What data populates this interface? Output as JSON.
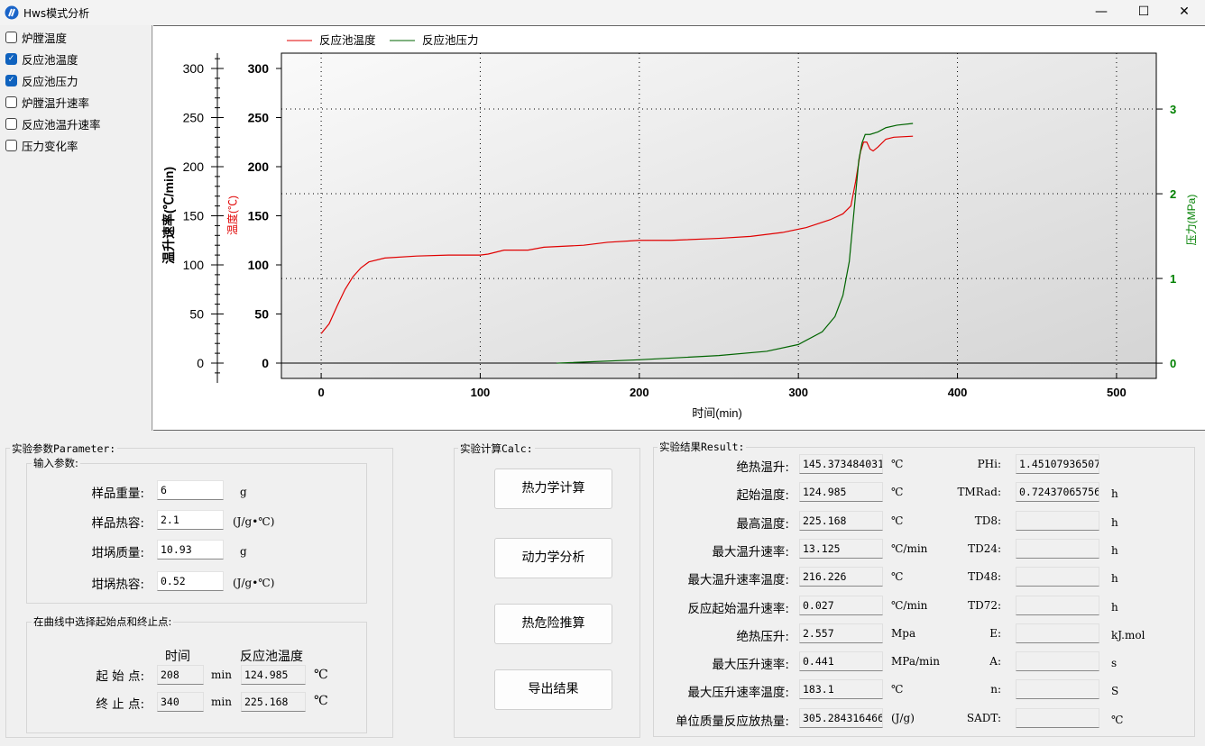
{
  "window": {
    "title": "Hws模式分析",
    "minimize": "—",
    "maximize": "☐",
    "close": "✕",
    "icon": "app-logo-icon"
  },
  "sidebar": {
    "items": [
      {
        "label": "炉膛温度",
        "checked": false
      },
      {
        "label": "反应池温度",
        "checked": true
      },
      {
        "label": "反应池压力",
        "checked": true
      },
      {
        "label": "炉膛温升速率",
        "checked": false
      },
      {
        "label": "反应池温升速率",
        "checked": false
      },
      {
        "label": "压力变化率",
        "checked": false
      }
    ]
  },
  "chart_data": {
    "type": "line",
    "xlabel": "时间(min)",
    "ylabel_outer": "温升速率(℃/min)",
    "ylabel_left": "温度(℃)",
    "ylabel_right": "压力(MPa)",
    "xlim": [
      -25,
      525
    ],
    "ylim": [
      -15.6,
      315.6
    ],
    "y2lim": [
      -0.18,
      3.66
    ],
    "x_ticks": [
      "0",
      "100",
      "200",
      "300",
      "400",
      "500"
    ],
    "y_ticks": [
      "0",
      "50",
      "100",
      "150",
      "200",
      "250",
      "300"
    ],
    "y2_ticks": [
      "0",
      "1",
      "2",
      "3"
    ],
    "grid": "dotted",
    "legend": "top-left",
    "series": [
      {
        "name": "反应池温度",
        "color": "#e00000",
        "axis": "left",
        "x": [
          0,
          5,
          10,
          15,
          20,
          25,
          30,
          40,
          60,
          80,
          100,
          105,
          115,
          130,
          140,
          165,
          180,
          200,
          220,
          250,
          270,
          290,
          305,
          320,
          328,
          333,
          336,
          339,
          341,
          343,
          345,
          347,
          350,
          355,
          360,
          372
        ],
        "y": [
          30,
          40,
          58,
          75,
          88,
          97,
          103,
          107,
          109,
          110,
          110,
          111,
          115,
          115,
          118,
          120,
          123,
          125,
          125,
          127,
          129,
          133,
          138,
          146,
          152,
          160,
          185,
          215,
          225,
          225,
          218,
          216,
          220,
          228,
          230,
          231
        ]
      },
      {
        "name": "反应池压力",
        "color": "#006400",
        "axis": "right",
        "x": [
          148,
          200,
          250,
          280,
          300,
          315,
          323,
          328,
          332,
          334,
          336,
          338,
          340,
          342,
          345,
          350,
          355,
          362,
          372
        ],
        "y": [
          0,
          0.04,
          0.09,
          0.14,
          0.22,
          0.37,
          0.55,
          0.8,
          1.2,
          1.6,
          2.0,
          2.4,
          2.6,
          2.7,
          2.7,
          2.73,
          2.78,
          2.81,
          2.83
        ]
      }
    ]
  },
  "params": {
    "title": "实验参数Parameter:",
    "input_title": "输入参数:",
    "inputs": [
      {
        "label": "样品重量:",
        "value": "6",
        "unit": "g"
      },
      {
        "label": "样品热容:",
        "value": "2.1",
        "unit": "(J/g•℃)"
      },
      {
        "label": "坩埚质量:",
        "value": "10.93",
        "unit": "g"
      },
      {
        "label": "坩埚热容:",
        "value": "0.52",
        "unit": "(J/g•℃)"
      }
    ],
    "select_title": "在曲线中选择起始点和终止点:",
    "col_time": "时间",
    "col_temp": "反应池温度",
    "start": {
      "label": "起 始 点:",
      "time": "208",
      "time_unit": "min",
      "temp": "124.985",
      "temp_unit": "℃"
    },
    "end": {
      "label": "终 止 点:",
      "time": "340",
      "time_unit": "min",
      "temp": "225.168",
      "temp_unit": "℃"
    }
  },
  "calc": {
    "title": "实验计算Calc:",
    "buttons": [
      "热力学计算",
      "动力学分析",
      "热危险推算",
      "导出结果"
    ]
  },
  "results": {
    "title": "实验结果Result:",
    "left": [
      {
        "label": "绝热温升:",
        "value": "145.373484031",
        "unit": "℃"
      },
      {
        "label": "起始温度:",
        "value": "124.985",
        "unit": "℃"
      },
      {
        "label": "最高温度:",
        "value": "225.168",
        "unit": "℃"
      },
      {
        "label": "最大温升速率:",
        "value": "13.125",
        "unit": "℃/min"
      },
      {
        "label": "最大温升速率温度:",
        "value": "216.226",
        "unit": "℃"
      },
      {
        "label": "反应起始温升速率:",
        "value": "0.027",
        "unit": "℃/min"
      },
      {
        "label": "绝热压升:",
        "value": "2.557",
        "unit": "Mpa"
      },
      {
        "label": "最大压升速率:",
        "value": "0.441",
        "unit": "MPa/min"
      },
      {
        "label": "最大压升速率温度:",
        "value": "183.1",
        "unit": "℃"
      },
      {
        "label": "单位质量反应放热量:",
        "value": "305.284316466",
        "unit": "(J/g)"
      }
    ],
    "right": [
      {
        "label": "PHi:",
        "value": "1.45107936507",
        "unit": ""
      },
      {
        "label": "TMRad:",
        "value": "0.72437065756",
        "unit": "h"
      },
      {
        "label": "TD8:",
        "value": "",
        "unit": "h"
      },
      {
        "label": "TD24:",
        "value": "",
        "unit": "h"
      },
      {
        "label": "TD48:",
        "value": "",
        "unit": "h"
      },
      {
        "label": "TD72:",
        "value": "",
        "unit": "h"
      },
      {
        "label": "E:",
        "value": "",
        "unit": "kJ.mol"
      },
      {
        "label": "A:",
        "value": "",
        "unit": "s"
      },
      {
        "label": "n:",
        "value": "",
        "unit": "S"
      },
      {
        "label": "SADT:",
        "value": "",
        "unit": "℃"
      }
    ]
  }
}
